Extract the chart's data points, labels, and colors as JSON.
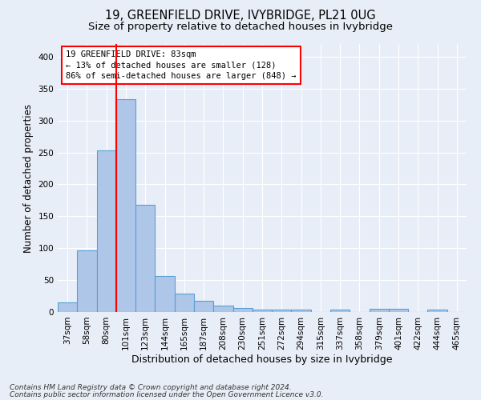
{
  "title": "19, GREENFIELD DRIVE, IVYBRIDGE, PL21 0UG",
  "subtitle": "Size of property relative to detached houses in Ivybridge",
  "xlabel": "Distribution of detached houses by size in Ivybridge",
  "ylabel": "Number of detached properties",
  "footnote1": "Contains HM Land Registry data © Crown copyright and database right 2024.",
  "footnote2": "Contains public sector information licensed under the Open Government Licence v3.0.",
  "annotation_line1": "19 GREENFIELD DRIVE: 83sqm",
  "annotation_line2": "← 13% of detached houses are smaller (128)",
  "annotation_line3": "86% of semi-detached houses are larger (848) →",
  "categories": [
    "37sqm",
    "58sqm",
    "80sqm",
    "101sqm",
    "123sqm",
    "144sqm",
    "165sqm",
    "187sqm",
    "208sqm",
    "230sqm",
    "251sqm",
    "272sqm",
    "294sqm",
    "315sqm",
    "337sqm",
    "358sqm",
    "379sqm",
    "401sqm",
    "422sqm",
    "444sqm",
    "465sqm"
  ],
  "values": [
    15,
    96,
    253,
    333,
    168,
    57,
    29,
    17,
    10,
    6,
    4,
    4,
    4,
    0,
    4,
    0,
    5,
    5,
    0,
    4,
    0
  ],
  "bar_color": "#aec6e8",
  "bar_edge_color": "#5a9fd4",
  "red_line_x": 2.5,
  "ylim": [
    0,
    420
  ],
  "yticks": [
    0,
    50,
    100,
    150,
    200,
    250,
    300,
    350,
    400
  ],
  "background_color": "#e8eef7",
  "plot_background_color": "#e8eef7",
  "grid_color": "#ffffff",
  "title_fontsize": 10.5,
  "subtitle_fontsize": 9.5,
  "axis_label_fontsize": 8.5,
  "tick_fontsize": 7.5,
  "annotation_fontsize": 7.5,
  "footnote_fontsize": 6.5
}
